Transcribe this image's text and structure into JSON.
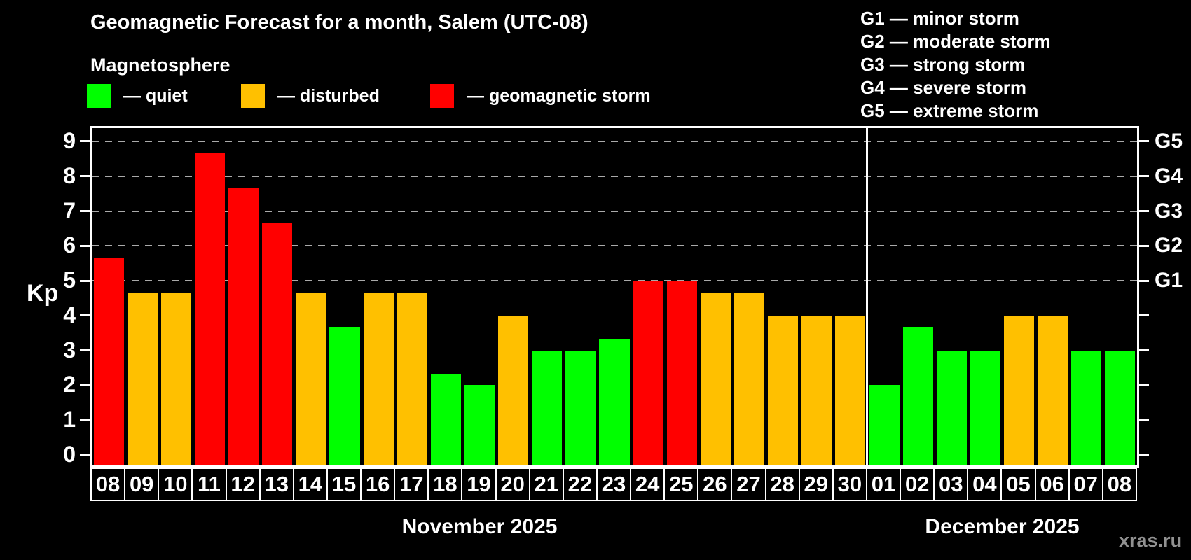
{
  "title": "Geomagnetic Forecast for a month, Salem (UTC-08)",
  "subtitle": "Magnetosphere",
  "watermark": "xras.ru",
  "legend": {
    "items": [
      {
        "id": "quiet",
        "label": "— quiet",
        "color": "#00ff00"
      },
      {
        "id": "disturbed",
        "label": "— disturbed",
        "color": "#ffc000"
      },
      {
        "id": "storm",
        "label": "— geomagnetic storm",
        "color": "#ff0000"
      }
    ]
  },
  "g_legend": [
    "G1 — minor storm",
    "G2 — moderate storm",
    "G3 — strong storm",
    "G4 — severe storm",
    "G5 — extreme storm"
  ],
  "chart_data": {
    "type": "bar",
    "title": "Geomagnetic Forecast for a month, Salem (UTC-08)",
    "ylabel": "Kp",
    "ylim": [
      0,
      9
    ],
    "y_ticks": [
      0,
      1,
      2,
      3,
      4,
      5,
      6,
      7,
      8,
      9
    ],
    "grid": "dashed horizontal at G levels only",
    "g_levels": [
      {
        "label": "G1",
        "kp": 5
      },
      {
        "label": "G2",
        "kp": 6
      },
      {
        "label": "G3",
        "kp": 7
      },
      {
        "label": "G4",
        "kp": 8
      },
      {
        "label": "G5",
        "kp": 9
      }
    ],
    "categories": [
      "08",
      "09",
      "10",
      "11",
      "12",
      "13",
      "14",
      "15",
      "16",
      "17",
      "18",
      "19",
      "20",
      "21",
      "22",
      "23",
      "24",
      "25",
      "26",
      "27",
      "28",
      "29",
      "30",
      "01",
      "02",
      "03",
      "04",
      "05",
      "06",
      "07",
      "08"
    ],
    "values": [
      5.67,
      4.67,
      4.67,
      8.67,
      7.67,
      6.67,
      4.67,
      3.67,
      4.67,
      4.67,
      2.33,
      2.0,
      4.0,
      3.0,
      3.0,
      3.33,
      5.0,
      5.0,
      4.67,
      4.67,
      4.0,
      4.0,
      4.0,
      2.0,
      3.67,
      3.0,
      3.0,
      4.0,
      4.0,
      3.0,
      3.0
    ],
    "statuses": [
      "storm",
      "disturbed",
      "disturbed",
      "storm",
      "storm",
      "storm",
      "disturbed",
      "quiet",
      "disturbed",
      "disturbed",
      "quiet",
      "quiet",
      "disturbed",
      "quiet",
      "quiet",
      "quiet",
      "storm",
      "storm",
      "disturbed",
      "disturbed",
      "disturbed",
      "disturbed",
      "disturbed",
      "quiet",
      "quiet",
      "quiet",
      "quiet",
      "disturbed",
      "disturbed",
      "quiet",
      "quiet"
    ],
    "status_colors": {
      "quiet": "#00ff00",
      "disturbed": "#ffc000",
      "storm": "#ff0000"
    },
    "months": [
      {
        "label": "November 2025",
        "start": 0,
        "count": 23
      },
      {
        "label": "December 2025",
        "start": 23,
        "count": 8
      }
    ]
  }
}
